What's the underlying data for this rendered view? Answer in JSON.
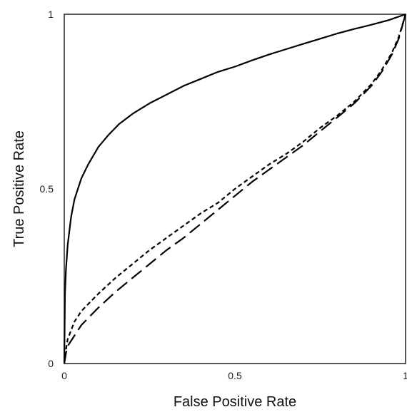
{
  "chart_data": {
    "type": "line",
    "title": "",
    "xlabel": "False Positive Rate",
    "ylabel": "True Positive Rate",
    "xlim": [
      0,
      1
    ],
    "ylim": [
      0,
      1
    ],
    "xticks": [
      {
        "value": 0,
        "label": "0"
      },
      {
        "value": 0.5,
        "label": "0.5"
      },
      {
        "value": 1,
        "label": "1"
      }
    ],
    "yticks": [
      {
        "value": 0,
        "label": "0"
      },
      {
        "value": 0.5,
        "label": "0.5"
      },
      {
        "value": 1,
        "label": "1"
      }
    ],
    "grid": false,
    "legend": "none",
    "series": [
      {
        "style": "solid",
        "x": [
          0,
          0.002,
          0.005,
          0.01,
          0.02,
          0.03,
          0.05,
          0.07,
          0.1,
          0.13,
          0.16,
          0.2,
          0.25,
          0.3,
          0.35,
          0.4,
          0.45,
          0.5,
          0.55,
          0.6,
          0.65,
          0.7,
          0.75,
          0.8,
          0.85,
          0.9,
          0.95,
          1.0
        ],
        "y": [
          0,
          0.2,
          0.27,
          0.34,
          0.42,
          0.47,
          0.53,
          0.57,
          0.62,
          0.655,
          0.685,
          0.715,
          0.745,
          0.77,
          0.795,
          0.815,
          0.835,
          0.85,
          0.868,
          0.885,
          0.9,
          0.915,
          0.93,
          0.945,
          0.958,
          0.97,
          0.983,
          1.0
        ]
      },
      {
        "style": "short-dash",
        "x": [
          0,
          0.005,
          0.01,
          0.03,
          0.05,
          0.08,
          0.1,
          0.15,
          0.2,
          0.25,
          0.3,
          0.35,
          0.4,
          0.45,
          0.5,
          0.55,
          0.6,
          0.65,
          0.7,
          0.75,
          0.8,
          0.85,
          0.9,
          0.93,
          0.96,
          0.98,
          1.0
        ],
        "y": [
          0,
          0.04,
          0.07,
          0.12,
          0.15,
          0.18,
          0.2,
          0.245,
          0.285,
          0.325,
          0.36,
          0.395,
          0.43,
          0.46,
          0.5,
          0.535,
          0.57,
          0.6,
          0.635,
          0.675,
          0.71,
          0.75,
          0.8,
          0.84,
          0.89,
          0.935,
          1.0
        ]
      },
      {
        "style": "long-dash",
        "x": [
          0,
          0.005,
          0.01,
          0.03,
          0.05,
          0.08,
          0.1,
          0.15,
          0.2,
          0.25,
          0.3,
          0.35,
          0.4,
          0.45,
          0.5,
          0.55,
          0.6,
          0.65,
          0.7,
          0.75,
          0.8,
          0.85,
          0.9,
          0.93,
          0.96,
          0.98,
          1.0
        ],
        "y": [
          0,
          0.03,
          0.05,
          0.08,
          0.11,
          0.14,
          0.16,
          0.205,
          0.245,
          0.285,
          0.325,
          0.36,
          0.4,
          0.44,
          0.48,
          0.52,
          0.555,
          0.59,
          0.625,
          0.665,
          0.705,
          0.745,
          0.795,
          0.835,
          0.885,
          0.93,
          1.0
        ]
      }
    ]
  }
}
